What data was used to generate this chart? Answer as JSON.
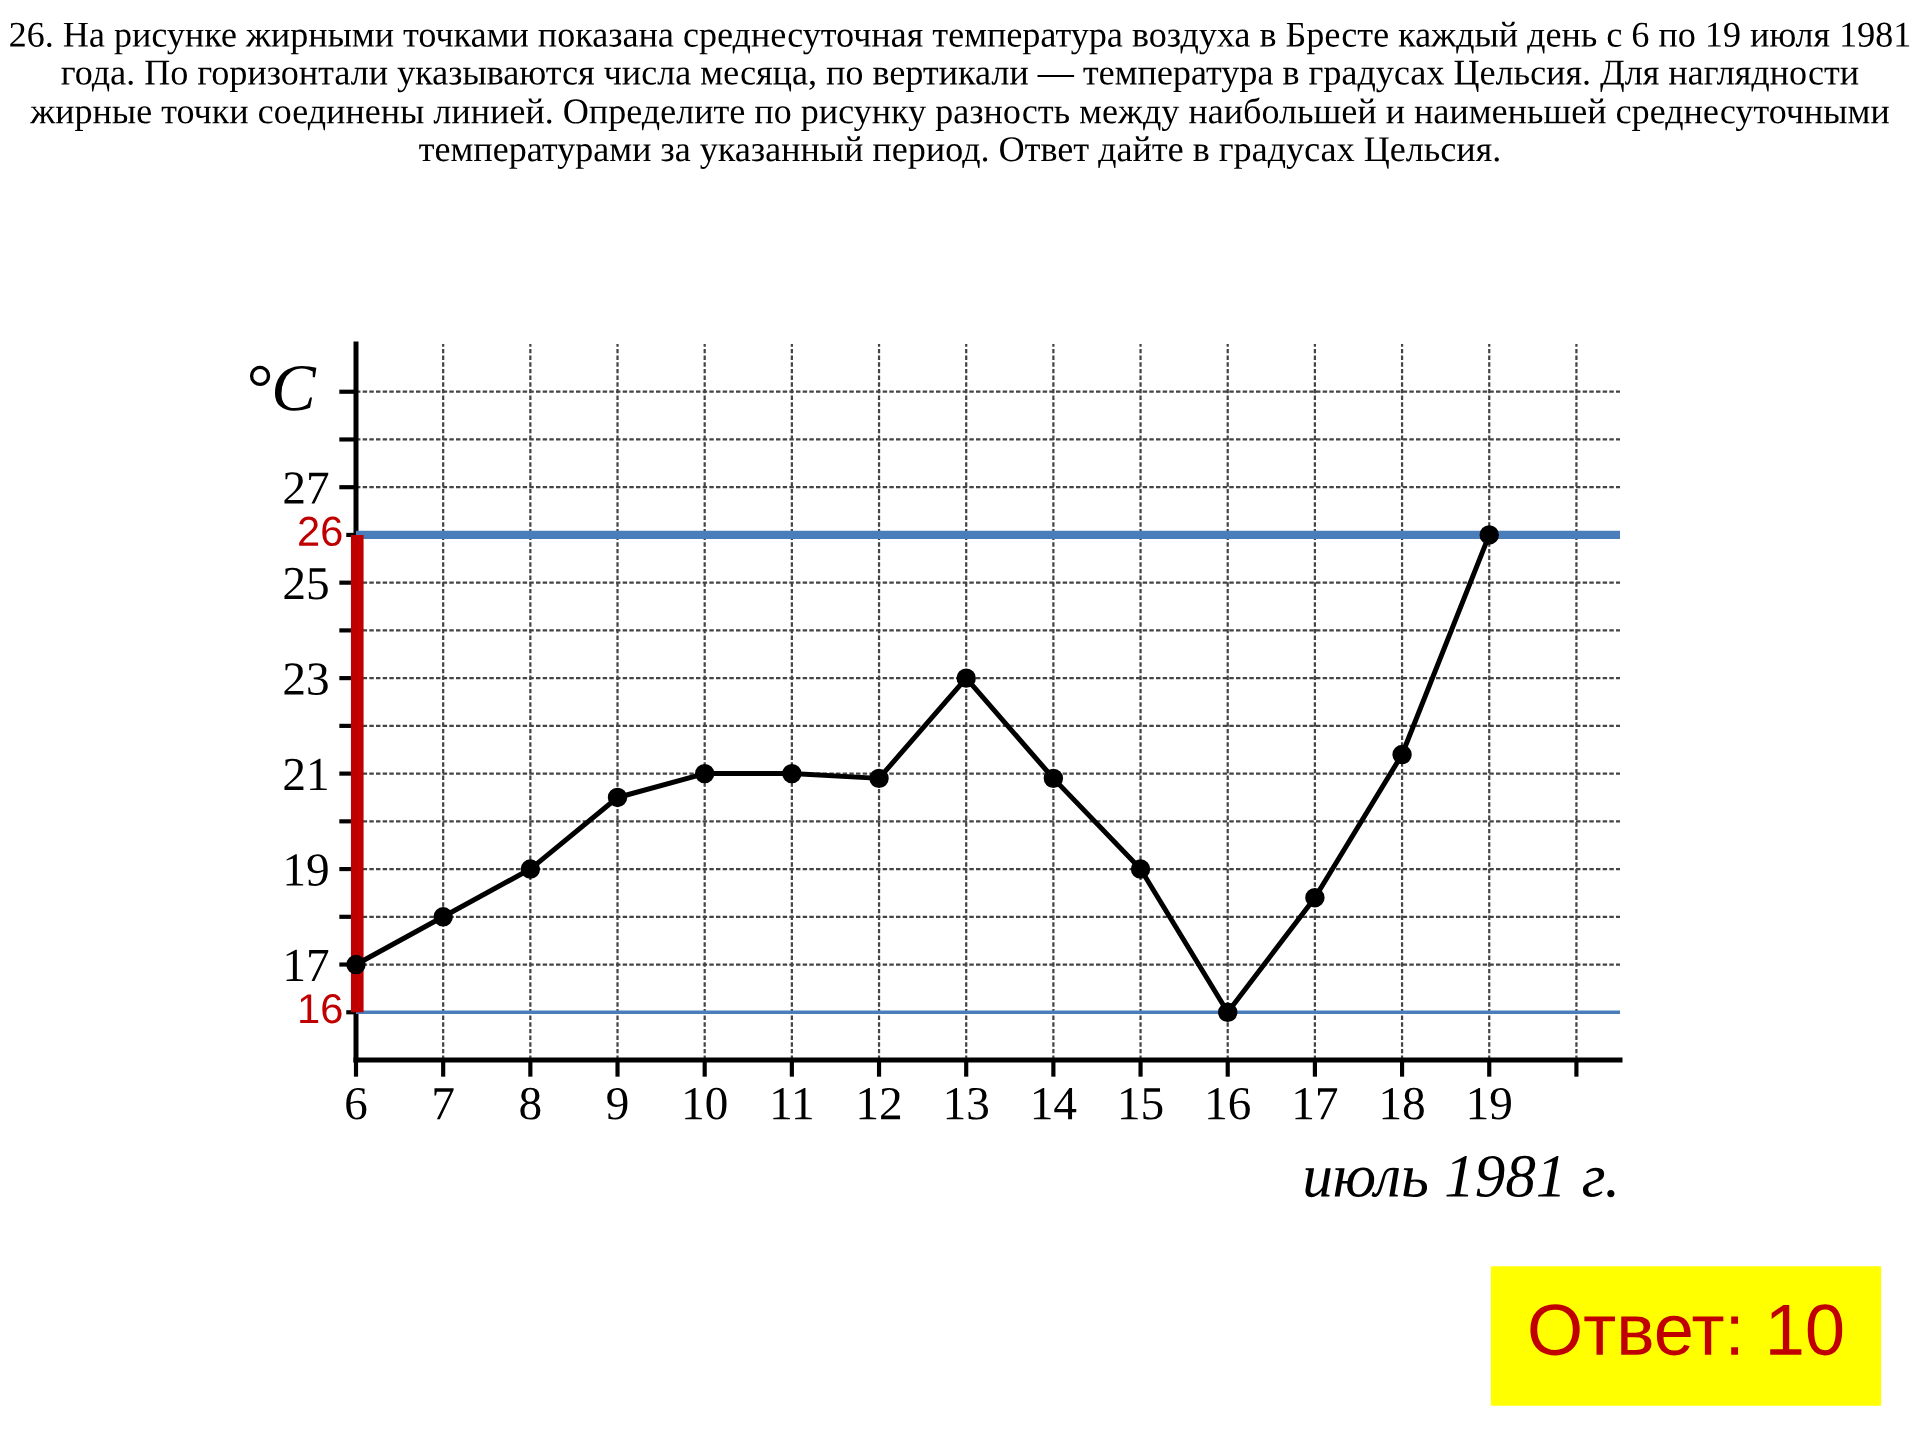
{
  "chart_data": {
    "type": "line",
    "title": "26. На рисунке жирными точками показана среднесуточная температура воздуха в Бресте каждый день с 6 по 19 июля 1981 года. По горизонтали указываются числа месяца, по вертикали — температура в градусах Цельсия. Для наглядности жирные точки соединены линией. Определите по рисунку разность между наибольшей и наименьшей среднесуточными температурами за указанный период. Ответ дайте в градусах Цельсия.",
    "xlabel": "июль 1981 г.",
    "ylabel": "°C",
    "x": [
      6,
      7,
      8,
      9,
      10,
      11,
      12,
      13,
      14,
      15,
      16,
      17,
      18,
      19
    ],
    "series": [
      {
        "color": "#000000",
        "values": [
          17,
          18,
          19,
          20.5,
          21,
          21,
          20.9,
          23,
          20.9,
          19,
          16,
          18.4,
          21.4,
          26
        ]
      }
    ],
    "xlim": [
      6,
      20.5
    ],
    "ylim": [
      15,
      30
    ],
    "xticks": [
      6,
      7,
      8,
      9,
      10,
      11,
      12,
      13,
      14,
      15,
      16,
      17,
      18,
      19,
      {
        "value": 20,
        "label": null
      }
    ],
    "yticks": [
      {
        "value": 16,
        "label": null
      },
      17,
      {
        "value": 18,
        "label": null
      },
      19,
      {
        "value": 20,
        "label": null
      },
      21,
      {
        "value": 22,
        "label": null
      },
      23,
      {
        "value": 24,
        "label": null
      },
      25,
      {
        "value": 26,
        "label": null
      },
      27,
      {
        "value": 28,
        "label": null
      },
      {
        "value": 29,
        "label": null
      }
    ],
    "ref_lines": [
      {
        "axis": "y",
        "value": 26,
        "label": "26",
        "color": "#4a7ebb"
      },
      {
        "axis": "y",
        "value": 16,
        "label": "16",
        "color": "#4a7ebb"
      }
    ],
    "annotations": [
      "Ответ: 10"
    ],
    "grid": true,
    "marker": "circle",
    "line_style": "solid"
  }
}
